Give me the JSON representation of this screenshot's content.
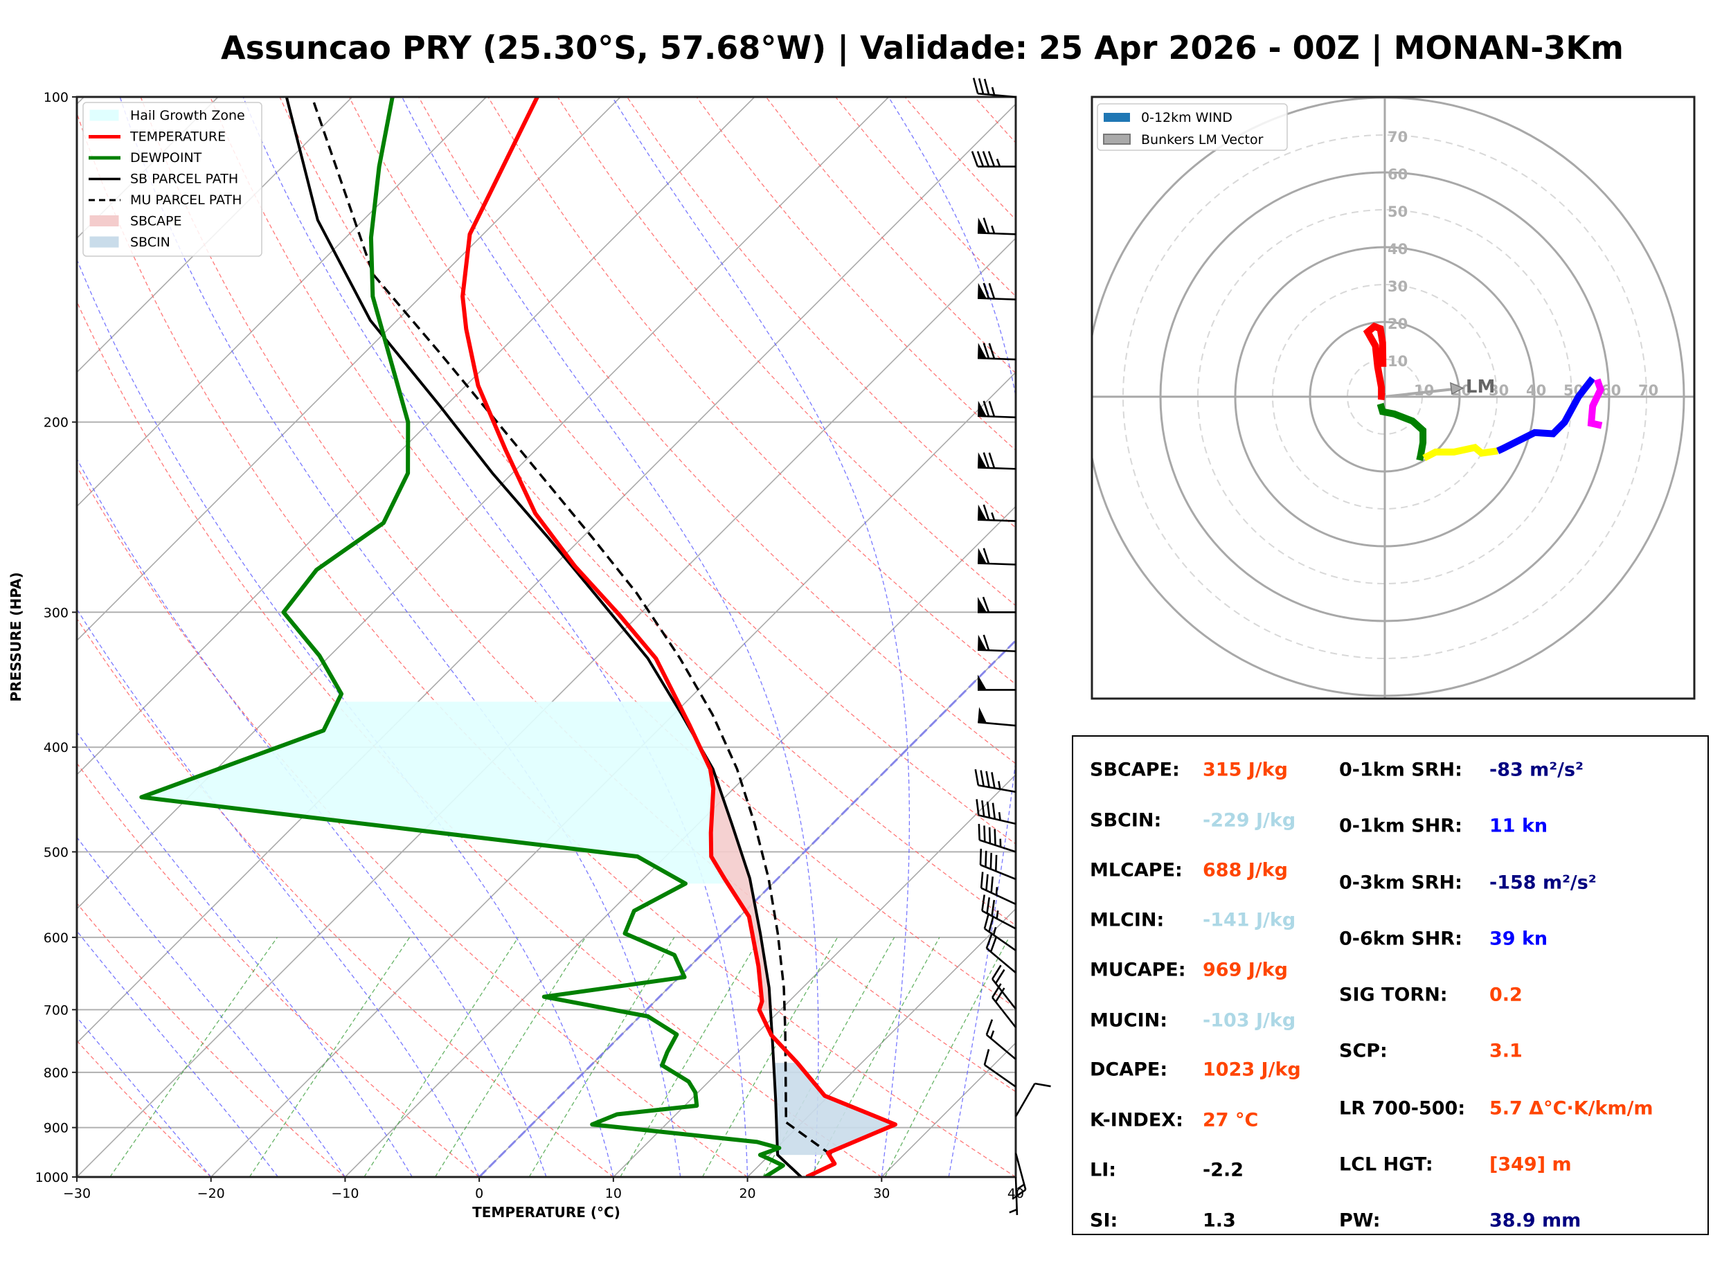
{
  "title": "Assuncao PRY (25.30°S, 57.68°W) | Validade: 25 Apr 2026 - 00Z | MONAN-3Km",
  "colors": {
    "temperature": "#ff0000",
    "dewpoint": "#008000",
    "sb_parcel": "#000000",
    "mu_parcel": "#000000",
    "hail_growth_zone": "#e0ffff",
    "sbcape": "#f4cccc",
    "sbcin": "#c9dcea",
    "cape_value": "#ff4500",
    "cin_value": "#add8e6",
    "srh_value": "#000080",
    "shear_value": "#0000ff",
    "neutral_value": "#000000"
  },
  "chart_data": [
    {
      "type": "line",
      "name": "skewt",
      "xlabel": "TEMPERATURE (°C)",
      "ylabel": "PRESSURE (HPA)",
      "xlim": [
        -30,
        40
      ],
      "ylim": [
        1000,
        100
      ],
      "yscale": "log",
      "xticks": [
        -30,
        -20,
        -10,
        0,
        10,
        20,
        30,
        40
      ],
      "xtick_labels": [
        "−30",
        "−20",
        "−10",
        "0",
        "10",
        "20",
        "30",
        "40"
      ],
      "yticks": [
        100,
        200,
        300,
        400,
        500,
        600,
        700,
        800,
        900,
        1000
      ],
      "ytick_labels": [
        "100",
        "200",
        "300",
        "400",
        "500",
        "600",
        "700",
        "800",
        "900",
        "1000"
      ],
      "legend": {
        "placement": "top-left",
        "entries": [
          "Hail Growth Zone",
          "TEMPERATURE",
          "DEWPOINT",
          "SB PARCEL PATH",
          "MU PARCEL PATH",
          "SBCAPE",
          "SBCIN"
        ]
      },
      "series": [
        {
          "name": "TEMPERATURE",
          "points": [
            [
              1000,
              24.4
            ],
            [
              972,
              25.5
            ],
            [
              950,
              24.2
            ],
            [
              894,
              27.1
            ],
            [
              841,
              19.7
            ],
            [
              784,
              15.2
            ],
            [
              739,
              11.2
            ],
            [
              700,
              8.4
            ],
            [
              688,
              8.0
            ],
            [
              638,
              5.1
            ],
            [
              574,
              0.7
            ],
            [
              529,
              -4.0
            ],
            [
              505,
              -6.6
            ],
            [
              480,
              -8.4
            ],
            [
              437,
              -11.5
            ],
            [
              419,
              -13.2
            ],
            [
              381,
              -18.1
            ],
            [
              331,
              -25.5
            ],
            [
              302,
              -31.4
            ],
            [
              272,
              -38.4
            ],
            [
              243,
              -45.3
            ],
            [
              212,
              -52.3
            ],
            [
              185,
              -59.1
            ],
            [
              164,
              -64.2
            ],
            [
              153,
              -66.9
            ],
            [
              134,
              -71.0
            ],
            [
              100,
              -76.2
            ]
          ]
        },
        {
          "name": "DEWPOINT",
          "points": [
            [
              1000,
              21.3
            ],
            [
              976,
              21.8
            ],
            [
              965,
              20.6
            ],
            [
              954,
              19.3
            ],
            [
              940,
              20.2
            ],
            [
              928,
              18.1
            ],
            [
              894,
              4.5
            ],
            [
              875,
              5.6
            ],
            [
              859,
              10.9
            ],
            [
              835,
              9.8
            ],
            [
              816,
              8.5
            ],
            [
              788,
              5.3
            ],
            [
              766,
              4.7
            ],
            [
              738,
              4.1
            ],
            [
              710,
              0.6
            ],
            [
              681,
              -8.6
            ],
            [
              653,
              0.4
            ],
            [
              623,
              -2.0
            ],
            [
              595,
              -7.3
            ],
            [
              567,
              -8.3
            ],
            [
              535,
              -6.5
            ],
            [
              505,
              -12.1
            ],
            [
              445,
              -53.5
            ],
            [
              386,
              -44.9
            ],
            [
              357,
              -46.3
            ],
            [
              329,
              -50.8
            ],
            [
              300,
              -56.7
            ],
            [
              274,
              -57.4
            ],
            [
              248,
              -55.9
            ],
            [
              223,
              -57.8
            ],
            [
              200,
              -61.6
            ],
            [
              153,
              -73.6
            ],
            [
              135,
              -78.1
            ],
            [
              116,
              -82.8
            ],
            [
              100,
              -87.0
            ]
          ]
        },
        {
          "name": "SB PARCEL PATH",
          "points": [
            [
              1000,
              24.0
            ],
            [
              954,
              20.6
            ],
            [
              845,
              16.2
            ],
            [
              752,
              11.9
            ],
            [
              668,
              7.5
            ],
            [
              595,
              2.8
            ],
            [
              529,
              -2.1
            ],
            [
              471,
              -7.5
            ],
            [
              419,
              -13.0
            ],
            [
              373,
              -19.4
            ],
            [
              331,
              -26.1
            ],
            [
              291,
              -34.3
            ],
            [
              256,
              -42.5
            ],
            [
              223,
              -51.5
            ],
            [
              193,
              -60.5
            ],
            [
              161,
              -72.0
            ],
            [
              130,
              -83.4
            ],
            [
              100,
              -94.9
            ]
          ]
        },
        {
          "name": "MU PARCEL PATH",
          "points": [
            [
              954,
              24.6
            ],
            [
              890,
              18.8
            ],
            [
              734,
              12.0
            ],
            [
              668,
              8.6
            ],
            [
              595,
              4.1
            ],
            [
              529,
              -0.7
            ],
            [
              471,
              -5.8
            ],
            [
              419,
              -11.2
            ],
            [
              373,
              -17.1
            ],
            [
              331,
              -23.7
            ],
            [
              288,
              -31.8
            ],
            [
              256,
              -39.2
            ],
            [
              228,
              -46.6
            ],
            [
              198,
              -55.6
            ],
            [
              172,
              -64.6
            ],
            [
              146,
              -75.2
            ],
            [
              100,
              -93.0
            ]
          ]
        }
      ],
      "hail_growth_zone": {
        "p_top": 362,
        "p_bottom": 535
      },
      "sbcape_layer": {
        "p_top": 420,
        "p_bottom": 700
      },
      "sbcin_layer": {
        "p_top": 784,
        "p_bottom": 954
      },
      "wind_barbs": [
        {
          "p": 100,
          "dir": 275,
          "spd": 35
        },
        {
          "p": 116,
          "dir": 270,
          "spd": 45
        },
        {
          "p": 134,
          "dir": 272,
          "spd": 65
        },
        {
          "p": 154,
          "dir": 272,
          "spd": 70
        },
        {
          "p": 175,
          "dir": 272,
          "spd": 70
        },
        {
          "p": 198,
          "dir": 272,
          "spd": 70
        },
        {
          "p": 221,
          "dir": 272,
          "spd": 70
        },
        {
          "p": 247,
          "dir": 272,
          "spd": 65
        },
        {
          "p": 271,
          "dir": 272,
          "spd": 60
        },
        {
          "p": 300,
          "dir": 270,
          "spd": 60
        },
        {
          "p": 326,
          "dir": 272,
          "spd": 60
        },
        {
          "p": 354,
          "dir": 270,
          "spd": 50
        },
        {
          "p": 382,
          "dir": 275,
          "spd": 50
        },
        {
          "p": 440,
          "dir": 280,
          "spd": 45
        },
        {
          "p": 471,
          "dir": 283,
          "spd": 45
        },
        {
          "p": 500,
          "dir": 288,
          "spd": 45
        },
        {
          "p": 530,
          "dir": 292,
          "spd": 40
        },
        {
          "p": 559,
          "dir": 295,
          "spd": 35
        },
        {
          "p": 589,
          "dir": 298,
          "spd": 35
        },
        {
          "p": 617,
          "dir": 305,
          "spd": 25
        },
        {
          "p": 647,
          "dir": 310,
          "spd": 20
        },
        {
          "p": 699,
          "dir": 322,
          "spd": 20
        },
        {
          "p": 727,
          "dir": 322,
          "spd": 20
        },
        {
          "p": 778,
          "dir": 310,
          "spd": 15
        },
        {
          "p": 825,
          "dir": 305,
          "spd": 10
        },
        {
          "p": 879,
          "dir": 30,
          "spd": 10
        },
        {
          "p": 950,
          "dir": 165,
          "spd": 15
        },
        {
          "p": 1000,
          "dir": 178,
          "spd": 5
        }
      ]
    },
    {
      "type": "line",
      "name": "hodograph",
      "units": "kt",
      "rings": [
        10,
        20,
        30,
        40,
        50,
        60,
        70,
        80
      ],
      "ring_labels": [
        "10",
        "20",
        "30",
        "40",
        "50",
        "60",
        "70"
      ],
      "legend": {
        "placement": "top-left",
        "entries": [
          "0-12km WIND",
          "Bunkers LM Vector"
        ]
      },
      "legend_colors": [
        "#1f77b4",
        "#aaaaaa"
      ],
      "segments": [
        {
          "color": "#ff0000",
          "points": [
            [
              0,
              0
            ],
            [
              -0.9,
              0.1
            ],
            [
              -0.9,
              2.5
            ],
            [
              -1.9,
              8
            ],
            [
              -2.5,
              13.6
            ],
            [
              -4.6,
              17.3
            ],
            [
              -2.8,
              18.8
            ],
            [
              -1.2,
              18.2
            ],
            [
              -0.6,
              14.5
            ],
            [
              -0.5,
              8
            ]
          ]
        },
        {
          "color": "#008000",
          "points": [
            [
              -1.2,
              -1.9
            ],
            [
              -0.6,
              -4
            ],
            [
              2.5,
              -4.6
            ],
            [
              7.4,
              -6.5
            ],
            [
              10.2,
              -9
            ],
            [
              10.2,
              -12.3
            ],
            [
              9.6,
              -15.7
            ],
            [
              9.3,
              -17
            ]
          ]
        },
        {
          "color": "#ffff00",
          "points": [
            [
              10.5,
              -16.4
            ],
            [
              13.6,
              -14.8
            ],
            [
              18.5,
              -14.8
            ],
            [
              24.1,
              -13.6
            ],
            [
              25.9,
              -15.1
            ],
            [
              30.2,
              -14.5
            ]
          ]
        },
        {
          "color": "#0000ff",
          "points": [
            [
              30.2,
              -14.5
            ],
            [
              31.5,
              -13.9
            ],
            [
              40.1,
              -9.6
            ],
            [
              45,
              -9.9
            ],
            [
              48.1,
              -6.8
            ],
            [
              51.8,
              0
            ],
            [
              55.6,
              4.9
            ]
          ]
        },
        {
          "color": "#ff00ff",
          "points": [
            [
              56.8,
              4.6
            ],
            [
              57.7,
              1.9
            ],
            [
              55.6,
              -2.5
            ],
            [
              55.2,
              -7.1
            ],
            [
              58,
              -7.7
            ]
          ]
        }
      ],
      "bunkers_lm": {
        "u": 19.8,
        "v": 2.2,
        "label": "LM"
      }
    }
  ],
  "stats": {
    "left": [
      {
        "label": "SBCAPE:",
        "value": "315 J/kg",
        "color": "#ff4500"
      },
      {
        "label": "SBCIN:",
        "value": "-229 J/kg",
        "color": "#add8e6"
      },
      {
        "label": "MLCAPE:",
        "value": "688 J/kg",
        "color": "#ff4500"
      },
      {
        "label": "MLCIN:",
        "value": "-141 J/kg",
        "color": "#add8e6"
      },
      {
        "label": "MUCAPE:",
        "value": "969 J/kg",
        "color": "#ff4500"
      },
      {
        "label": "MUCIN:",
        "value": "-103 J/kg",
        "color": "#add8e6"
      },
      {
        "label": "DCAPE:",
        "value": "1023 J/kg",
        "color": "#ff4500"
      },
      {
        "label": "K-INDEX:",
        "value": "27 °C",
        "color": "#ff4500"
      },
      {
        "label": "LI:",
        "value": "-2.2",
        "color": "#000000"
      },
      {
        "label": "SI:",
        "value": "1.3",
        "color": "#000000"
      }
    ],
    "right": [
      {
        "label": "0-1km SRH:",
        "value": "-83 m²/s²",
        "color": "#000080"
      },
      {
        "label": "0-1km SHR:",
        "value": "11 kn",
        "color": "#0000ff"
      },
      {
        "label": "0-3km SRH:",
        "value": "-158 m²/s²",
        "color": "#000080"
      },
      {
        "label": "0-6km SHR:",
        "value": "39 kn",
        "color": "#0000ff"
      },
      {
        "label": "SIG TORN:",
        "value": "0.2",
        "color": "#ff4500"
      },
      {
        "label": "SCP:",
        "value": "3.1",
        "color": "#ff4500"
      },
      {
        "label": "LR 700-500:",
        "value": "5.7 Δ°C·K/km/m",
        "color": "#ff4500"
      },
      {
        "label": "LCL HGT:",
        "value": "[349] m",
        "color": "#ff4500"
      },
      {
        "label": "PW:",
        "value": "38.9 mm",
        "color": "#000080"
      }
    ]
  }
}
